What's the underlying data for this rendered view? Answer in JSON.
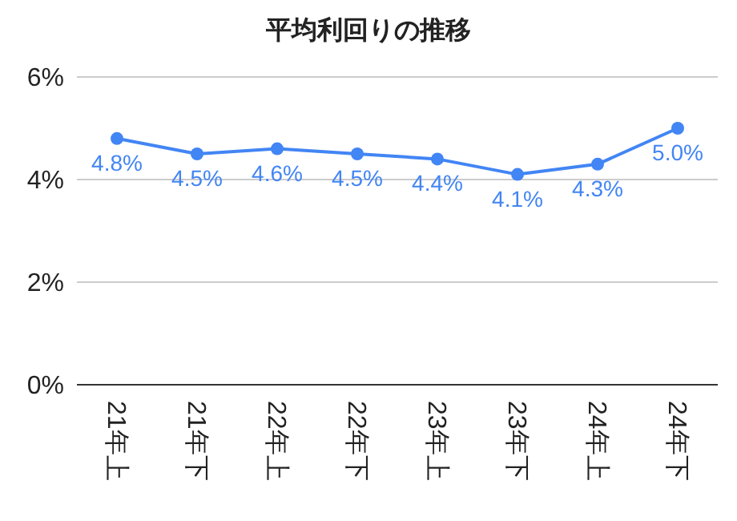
{
  "chart_data": {
    "type": "line",
    "title": "平均利回りの推移",
    "categories": [
      "21年上",
      "21年下",
      "22年上",
      "22年下",
      "23年上",
      "23年下",
      "24年上",
      "24年下"
    ],
    "series": [
      {
        "color": "#4285f4",
        "values": [
          4.8,
          4.5,
          4.6,
          4.5,
          4.4,
          4.1,
          4.3,
          5.0
        ],
        "value_labels": [
          "4.8%",
          "4.5%",
          "4.6%",
          "4.5%",
          "4.4%",
          "4.1%",
          "4.3%",
          "5.0%"
        ]
      }
    ],
    "ylim": [
      0,
      6
    ],
    "yticks": [
      {
        "value": 0,
        "label": "0%"
      },
      {
        "value": 2,
        "label": "2%"
      },
      {
        "value": 4,
        "label": "4%"
      },
      {
        "value": 6,
        "label": "6%"
      }
    ],
    "grid": "y",
    "marker": "circle",
    "line_style": "solid"
  }
}
